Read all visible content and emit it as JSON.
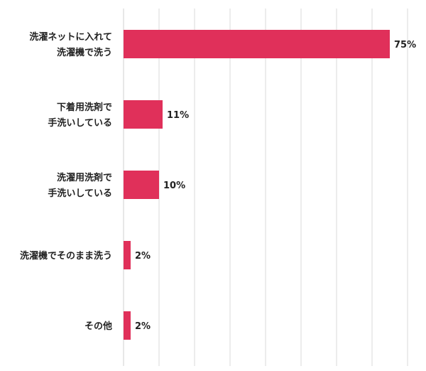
{
  "chart_data": {
    "type": "bar",
    "orientation": "horizontal",
    "title": "",
    "xlabel": "",
    "ylabel": "",
    "categories": [
      [
        "洗濯ネットに入れて",
        "洗濯機で洗う"
      ],
      [
        "下着用洗剤で",
        "手洗いしている"
      ],
      [
        "洗濯用洗剤で",
        "手洗いしている"
      ],
      [
        "洗濯機でそのまま洗う"
      ],
      [
        "その他"
      ]
    ],
    "values": [
      75,
      11,
      10,
      2,
      2
    ],
    "value_labels": [
      "75%",
      "11%",
      "10%",
      "2%",
      "2%"
    ],
    "xlim": [
      0,
      80
    ],
    "grid": true,
    "colors": {
      "bar": "#e0305a",
      "grid": "#d9d9d9",
      "text": "#222222"
    }
  }
}
